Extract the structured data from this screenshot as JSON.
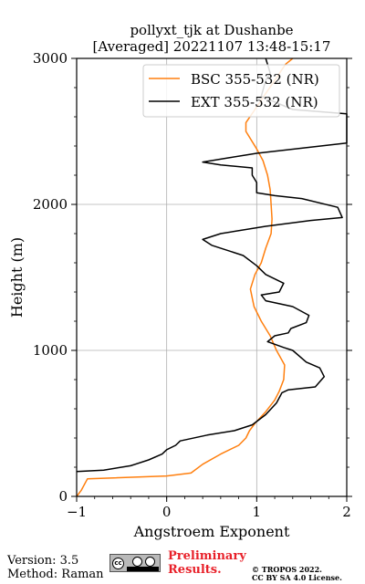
{
  "chart_data": {
    "type": "line",
    "title": "pollyxt_tjk at Dushanbe",
    "subtitle": "[Averaged] 20221107 13:48-15:17",
    "xlabel": "Angstroem Exponent",
    "ylabel": "Height (m)",
    "xlim": [
      -1,
      2
    ],
    "ylim": [
      0,
      3000
    ],
    "xticks": [
      "-1",
      "0",
      "1",
      "2"
    ],
    "yticks": [
      "0",
      "1000",
      "2000",
      "3000"
    ],
    "grid": true,
    "legend_position": "top-right",
    "series": [
      {
        "name": "BSC 355-532 (NR)",
        "color": "#ff7f0e",
        "points": [
          [
            -1.0,
            0
          ],
          [
            -0.95,
            40
          ],
          [
            -0.88,
            120
          ],
          [
            0.0,
            140
          ],
          [
            0.27,
            160
          ],
          [
            0.4,
            220
          ],
          [
            0.6,
            290
          ],
          [
            0.8,
            350
          ],
          [
            0.88,
            400
          ],
          [
            0.92,
            450
          ],
          [
            0.98,
            500
          ],
          [
            1.1,
            580
          ],
          [
            1.2,
            660
          ],
          [
            1.25,
            720
          ],
          [
            1.3,
            800
          ],
          [
            1.31,
            900
          ],
          [
            1.22,
            1000
          ],
          [
            1.15,
            1100
          ],
          [
            1.05,
            1200
          ],
          [
            0.97,
            1300
          ],
          [
            0.93,
            1420
          ],
          [
            0.98,
            1520
          ],
          [
            1.05,
            1600
          ],
          [
            1.1,
            1700
          ],
          [
            1.16,
            1800
          ],
          [
            1.17,
            1900
          ],
          [
            1.16,
            2000
          ],
          [
            1.15,
            2100
          ],
          [
            1.12,
            2200
          ],
          [
            1.07,
            2300
          ],
          [
            1.0,
            2380
          ],
          [
            0.88,
            2500
          ],
          [
            0.88,
            2560
          ],
          [
            0.98,
            2650
          ],
          [
            1.1,
            2760
          ],
          [
            1.2,
            2850
          ],
          [
            1.32,
            2960
          ],
          [
            1.4,
            3000
          ]
        ]
      },
      {
        "name": "EXT 355-532 (NR)",
        "color": "#000000",
        "points": [
          [
            -1.0,
            170
          ],
          [
            -0.7,
            180
          ],
          [
            -0.4,
            210
          ],
          [
            -0.2,
            250
          ],
          [
            -0.05,
            290
          ],
          [
            0.0,
            320
          ],
          [
            0.1,
            350
          ],
          [
            0.15,
            380
          ],
          [
            0.45,
            420
          ],
          [
            0.75,
            450
          ],
          [
            0.95,
            490
          ],
          [
            1.1,
            560
          ],
          [
            1.22,
            640
          ],
          [
            1.28,
            710
          ],
          [
            1.35,
            730
          ],
          [
            1.65,
            750
          ],
          [
            1.75,
            820
          ],
          [
            1.7,
            880
          ],
          [
            1.55,
            920
          ],
          [
            1.4,
            1000
          ],
          [
            1.3,
            1020
          ],
          [
            1.12,
            1060
          ],
          [
            1.2,
            1100
          ],
          [
            1.35,
            1120
          ],
          [
            1.38,
            1150
          ],
          [
            1.55,
            1190
          ],
          [
            1.58,
            1240
          ],
          [
            1.4,
            1300
          ],
          [
            1.1,
            1340
          ],
          [
            1.05,
            1380
          ],
          [
            1.25,
            1400
          ],
          [
            1.3,
            1460
          ],
          [
            1.1,
            1520
          ],
          [
            1.0,
            1580
          ],
          [
            0.85,
            1650
          ],
          [
            0.5,
            1720
          ],
          [
            0.4,
            1760
          ],
          [
            0.6,
            1800
          ],
          [
            1.1,
            1850
          ],
          [
            1.6,
            1890
          ],
          [
            1.95,
            1910
          ],
          [
            1.9,
            1980
          ],
          [
            1.5,
            2040
          ],
          [
            1.2,
            2060
          ],
          [
            1.0,
            2080
          ],
          [
            1.0,
            2150
          ],
          [
            0.95,
            2200
          ],
          [
            0.95,
            2250
          ],
          [
            0.6,
            2270
          ],
          [
            0.4,
            2290
          ],
          [
            0.7,
            2320
          ],
          [
            1.0,
            2350
          ],
          [
            2.0,
            2420
          ],
          [
            2.0,
            2620
          ],
          [
            1.4,
            2650
          ],
          [
            1.05,
            2740
          ],
          [
            1.1,
            2850
          ],
          [
            1.15,
            2900
          ],
          [
            1.1,
            3000
          ]
        ]
      }
    ]
  },
  "footer": {
    "version": "Version: 3.5",
    "method": "Method: Raman",
    "preliminary_line1": "Preliminary",
    "preliminary_line2": "Results.",
    "license_line1": "© TROPOS 2022.",
    "license_line2": "CC BY SA 4.0 License."
  },
  "cc_badge": {
    "icon": "creative-commons-by-sa-icon"
  }
}
